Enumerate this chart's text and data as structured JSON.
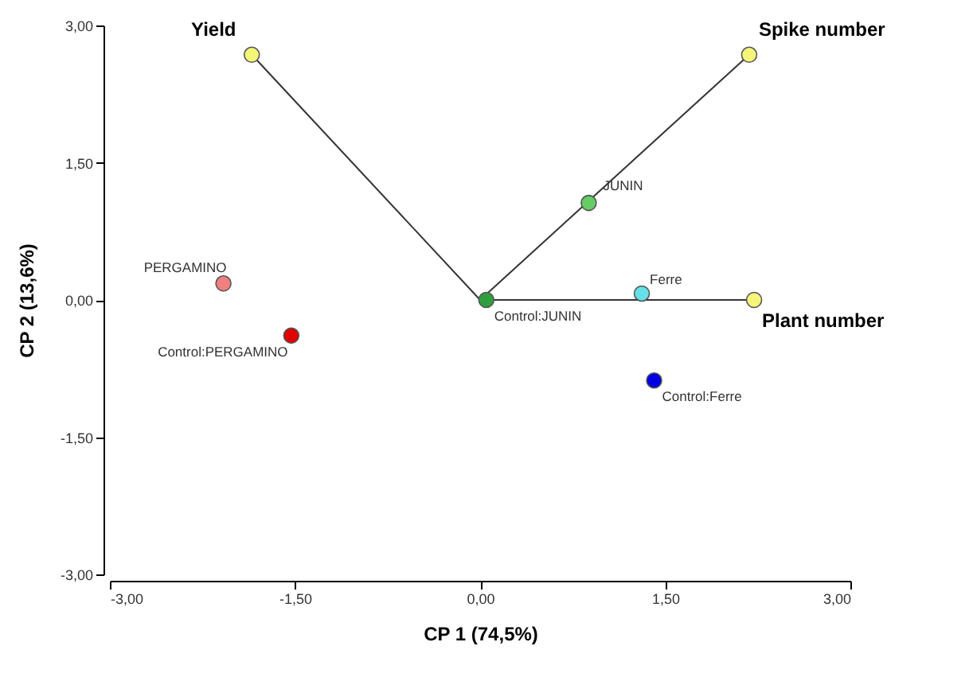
{
  "chart_data": {
    "type": "scatter",
    "xlabel": "CP 1 (74,5%)",
    "ylabel": "CP 2 (13,6%)",
    "xlim": [
      -3,
      3
    ],
    "ylim": [
      -3,
      3
    ],
    "xticks": [
      {
        "value": -3,
        "label": "-3,00"
      },
      {
        "value": -1.5,
        "label": "-1,50"
      },
      {
        "value": 0,
        "label": "0,00"
      },
      {
        "value": 1.5,
        "label": "1,50"
      },
      {
        "value": 3,
        "label": "3,00"
      }
    ],
    "yticks": [
      {
        "value": -3,
        "label": "-3,00"
      },
      {
        "value": -1.5,
        "label": "-1,50"
      },
      {
        "value": 0,
        "label": "0,00"
      },
      {
        "value": 1.5,
        "label": "1,50"
      },
      {
        "value": 3,
        "label": "3,00"
      }
    ],
    "grid": false,
    "marker": "circle",
    "series": [
      {
        "type": "line",
        "color": "#333333",
        "marker": "none",
        "x": [
          0,
          -1.85
        ],
        "values": [
          0,
          2.68
        ]
      },
      {
        "type": "line",
        "color": "#333333",
        "marker": "none",
        "x": [
          0,
          2.18
        ],
        "values": [
          0,
          2.68
        ]
      },
      {
        "type": "line",
        "color": "#333333",
        "marker": "none",
        "x": [
          0,
          2.22
        ],
        "values": [
          0,
          0
        ]
      },
      {
        "name": "Yield",
        "color": "#f5f57a",
        "x": [
          -1.85
        ],
        "values": [
          2.68
        ]
      },
      {
        "name": "Spike number",
        "color": "#f5f57a",
        "x": [
          2.18
        ],
        "values": [
          2.68
        ]
      },
      {
        "name": "Plant number",
        "color": "#f5f57a",
        "x": [
          2.22
        ],
        "values": [
          0
        ]
      },
      {
        "name": "JUNIN",
        "color": "#66cc66",
        "x": [
          0.88
        ],
        "values": [
          1.06
        ]
      },
      {
        "name": "Control:JUNIN",
        "color": "#2e9e3e",
        "x": [
          0.05
        ],
        "values": [
          0
        ]
      },
      {
        "name": "Ferre",
        "color": "#66e0e8",
        "x": [
          1.31
        ],
        "values": [
          0.07
        ]
      },
      {
        "name": "Control:Ferre",
        "color": "#0000e0",
        "x": [
          1.41
        ],
        "values": [
          -0.88
        ]
      },
      {
        "name": "PERGAMINO",
        "color": "#f08080",
        "x": [
          -2.08
        ],
        "values": [
          0.18
        ]
      },
      {
        "name": "Control:PERGAMINO",
        "color": "#e00000",
        "x": [
          -1.53
        ],
        "values": [
          -0.39
        ]
      }
    ]
  }
}
